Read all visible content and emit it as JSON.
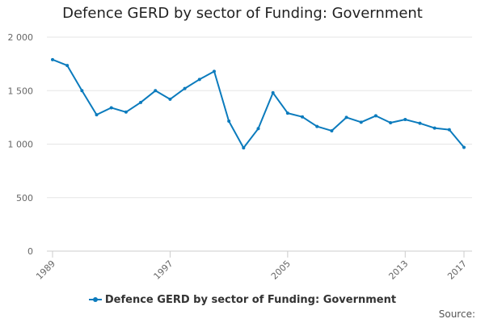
{
  "chart_data": {
    "type": "line",
    "title": "Defence GERD by sector of Funding: Government",
    "x": [
      1989,
      1990,
      1991,
      1992,
      1993,
      1994,
      1995,
      1996,
      1997,
      1998,
      1999,
      2000,
      2001,
      2002,
      2003,
      2004,
      2005,
      2006,
      2007,
      2008,
      2009,
      2010,
      2011,
      2012,
      2013,
      2014,
      2015,
      2016,
      2017
    ],
    "x_tick_labels": [
      "1989",
      "1997",
      "2005",
      "2013",
      "2017"
    ],
    "y_tick_labels": [
      "0",
      "500",
      "1 000",
      "1 500",
      "2 000"
    ],
    "ylim": [
      0,
      2000
    ],
    "grid": true,
    "legend_position": "bottom",
    "series": [
      {
        "name": "Defence GERD by sector of Funding: Government",
        "color": "#0b7bbd",
        "values": [
          1790,
          1735,
          1500,
          1275,
          1340,
          1300,
          1390,
          1500,
          1420,
          1520,
          1605,
          1680,
          1215,
          965,
          1145,
          1480,
          1290,
          1255,
          1165,
          1125,
          1250,
          1205,
          1265,
          1200,
          1230,
          1195,
          1150,
          1135,
          970
        ]
      }
    ]
  },
  "source_label": "Source:"
}
